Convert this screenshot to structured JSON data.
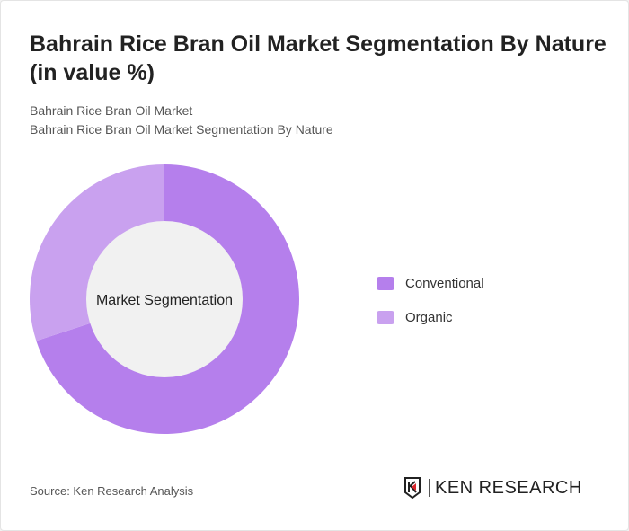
{
  "header": {
    "title": "Bahrain Rice Bran Oil Market Segmentation By Nature (in value %)",
    "subtitle1": "Bahrain Rice Bran Oil Market",
    "subtitle2": "Bahrain Rice Bran Oil Market Segmentation By Nature"
  },
  "chart_data": {
    "type": "pie",
    "donut": true,
    "center_label": "Market Segmentation",
    "categories": [
      "Conventional",
      "Organic"
    ],
    "values": [
      70,
      30
    ],
    "colors": [
      "#b57fec",
      "#c9a1ef"
    ],
    "legend_position": "right"
  },
  "footer": {
    "source": "Source: Ken Research Analysis",
    "logo_text": "KEN RESEARCH"
  }
}
